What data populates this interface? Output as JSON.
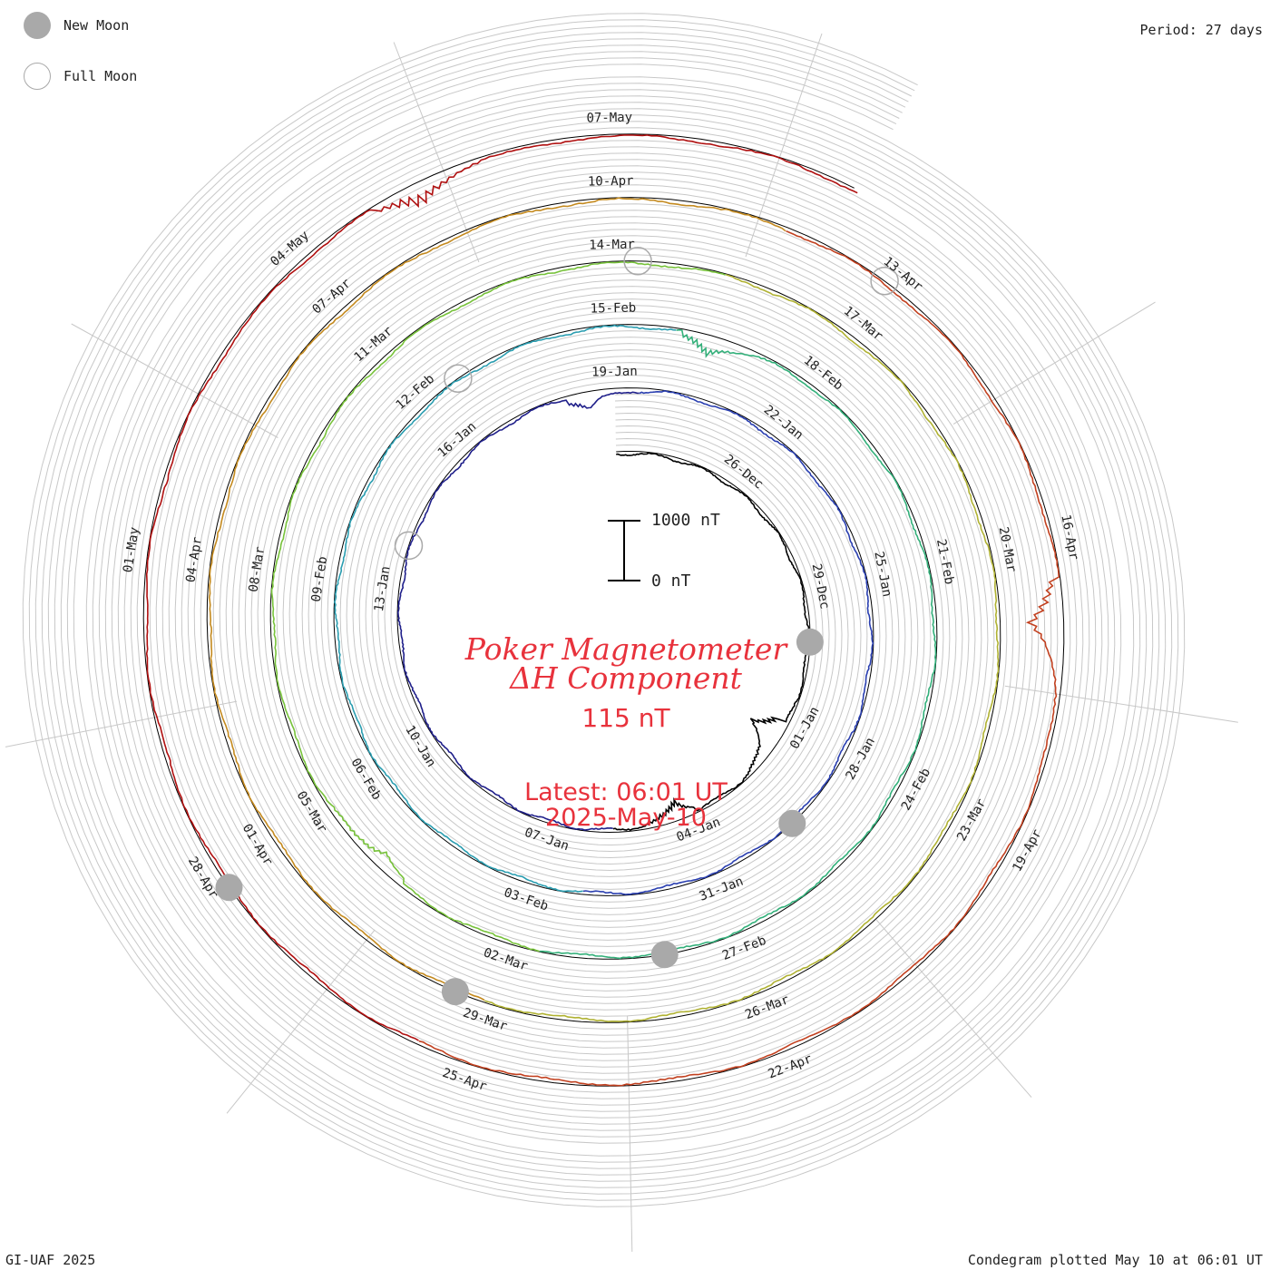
{
  "legend": {
    "new_moon_label": "New Moon",
    "full_moon_label": "Full Moon",
    "new_moon_icon": "filled-gray-circle",
    "full_moon_icon": "hollow-gray-circle"
  },
  "period_label": "Period: 27 days",
  "footer": {
    "left": "GI-UAF 2025",
    "right": "Condegram plotted May 10 at 06:01 UT"
  },
  "title": {
    "line1": "Poker Magnetometer",
    "line2": "ΔH Component",
    "value": "115 nT",
    "latest_line": "Latest: 06:01 UT",
    "date_line": "2025-May-10"
  },
  "scale_bar": {
    "top_label": "1000 nT",
    "bottom_label": "0 nT"
  },
  "colors": {
    "title": "#e8323c",
    "grid": "#c8c8c8",
    "moon": "#a9a9a9",
    "series": [
      "#000000",
      "#1f1f8a",
      "#2a3fb0",
      "#2a9db0",
      "#33b07a",
      "#77c23a",
      "#b0b233",
      "#c48a1f",
      "#c2401f",
      "#b01010"
    ]
  },
  "chart_data": {
    "type": "condegram-spiral",
    "component": "ΔH",
    "period_days": 27,
    "start": "2024-12-23",
    "end": "2025-05-10T06:01Z",
    "scale_nT_per_bar": 1000,
    "date_labels": [
      {
        "label": "26-Dec",
        "day": 3
      },
      {
        "label": "29-Dec",
        "day": 6
      },
      {
        "label": "01-Jan",
        "day": 9
      },
      {
        "label": "04-Jan",
        "day": 12
      },
      {
        "label": "07-Jan",
        "day": 15
      },
      {
        "label": "10-Jan",
        "day": 18
      },
      {
        "label": "13-Jan",
        "day": 21
      },
      {
        "label": "16-Jan",
        "day": 24
      },
      {
        "label": "19-Jan",
        "day": 27
      },
      {
        "label": "22-Jan",
        "day": 30
      },
      {
        "label": "25-Jan",
        "day": 33
      },
      {
        "label": "28-Jan",
        "day": 36
      },
      {
        "label": "31-Jan",
        "day": 39
      },
      {
        "label": "03-Feb",
        "day": 42
      },
      {
        "label": "06-Feb",
        "day": 45
      },
      {
        "label": "09-Feb",
        "day": 48
      },
      {
        "label": "12-Feb",
        "day": 51
      },
      {
        "label": "15-Feb",
        "day": 54
      },
      {
        "label": "18-Feb",
        "day": 57
      },
      {
        "label": "21-Feb",
        "day": 60
      },
      {
        "label": "24-Feb",
        "day": 63
      },
      {
        "label": "27-Feb",
        "day": 66
      },
      {
        "label": "02-Mar",
        "day": 69
      },
      {
        "label": "05-Mar",
        "day": 72
      },
      {
        "label": "08-Mar",
        "day": 75
      },
      {
        "label": "11-Mar",
        "day": 78
      },
      {
        "label": "14-Mar",
        "day": 81
      },
      {
        "label": "17-Mar",
        "day": 84
      },
      {
        "label": "20-Mar",
        "day": 87
      },
      {
        "label": "23-Mar",
        "day": 90
      },
      {
        "label": "26-Mar",
        "day": 93
      },
      {
        "label": "29-Mar",
        "day": 96
      },
      {
        "label": "01-Apr",
        "day": 99
      },
      {
        "label": "04-Apr",
        "day": 102
      },
      {
        "label": "07-Apr",
        "day": 105
      },
      {
        "label": "10-Apr",
        "day": 108
      },
      {
        "label": "13-Apr",
        "day": 111
      },
      {
        "label": "16-Apr",
        "day": 114
      },
      {
        "label": "19-Apr",
        "day": 117
      },
      {
        "label": "22-Apr",
        "day": 120
      },
      {
        "label": "25-Apr",
        "day": 123
      },
      {
        "label": "28-Apr",
        "day": 126
      },
      {
        "label": "01-May",
        "day": 129
      },
      {
        "label": "04-May",
        "day": 132
      },
      {
        "label": "07-May",
        "day": 135
      }
    ],
    "new_moons": [
      {
        "date": "2024-12-30",
        "day": 7.2
      },
      {
        "date": "2025-01-29",
        "day": 37.5
      },
      {
        "date": "2025-02-28",
        "day": 67.0
      },
      {
        "date": "2025-03-29",
        "day": 96.4
      },
      {
        "date": "2025-04-27",
        "day": 125.8
      }
    ],
    "full_moons": [
      {
        "date": "2025-01-13",
        "day": 21.9
      },
      {
        "date": "2025-02-12",
        "day": 51.6
      },
      {
        "date": "2025-03-14",
        "day": 81.3
      },
      {
        "date": "2025-04-13",
        "day": 110.9
      }
    ],
    "storm_events": [
      {
        "date": "2025-01-01",
        "day": 9.5,
        "peak_nT": 700
      },
      {
        "date": "2025-01-04",
        "day": 12.3,
        "peak_nT": 350
      },
      {
        "date": "2025-01-18",
        "day": 26.5,
        "peak_nT": 300
      },
      {
        "date": "2025-02-16",
        "day": 55.4,
        "peak_nT": 350
      },
      {
        "date": "2025-03-04",
        "day": 71.0,
        "peak_nT": 300
      },
      {
        "date": "2025-04-16",
        "day": 114.8,
        "peak_nT": 600
      },
      {
        "date": "2025-05-05",
        "day": 133.2,
        "peak_nT": 350
      }
    ]
  }
}
